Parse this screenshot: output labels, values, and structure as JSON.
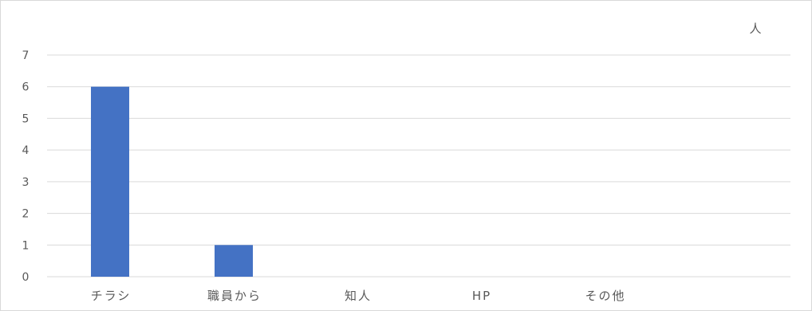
{
  "chart_data": {
    "type": "bar",
    "title": "",
    "xlabel": "",
    "ylabel": "",
    "unit": "人",
    "categories": [
      "チラシ",
      "職員から",
      "知人",
      "HP",
      "その他"
    ],
    "values": [
      6,
      1,
      0,
      0,
      0
    ],
    "ylim": [
      0,
      7
    ],
    "yticks": [
      0,
      1,
      2,
      3,
      4,
      5,
      6,
      7
    ],
    "grid": true,
    "bar_color": "#4472c4",
    "legend": "none"
  }
}
